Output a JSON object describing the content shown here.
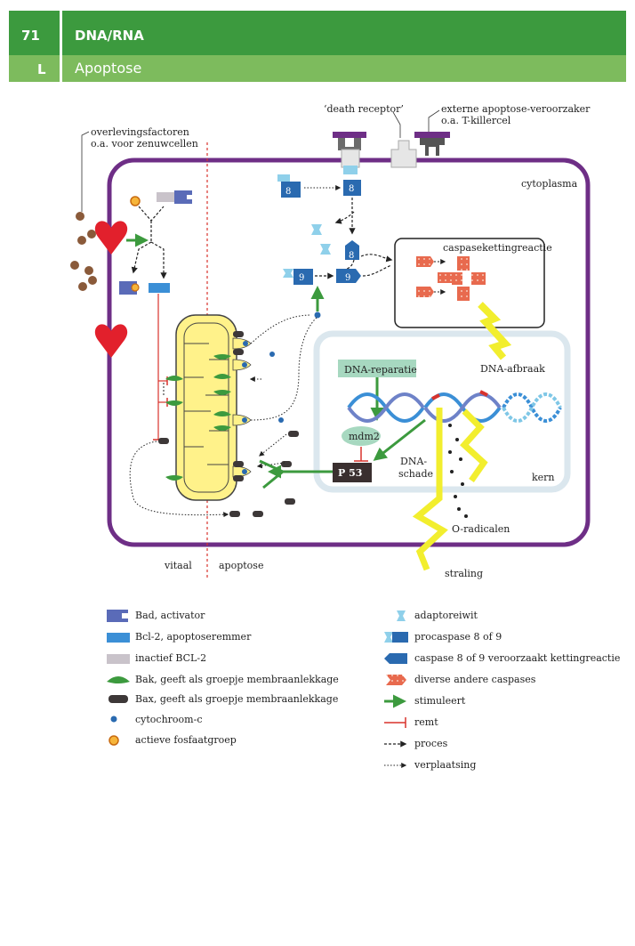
{
  "header": {
    "number": "71",
    "title": "DNA/RNA",
    "code": "L",
    "subtitle": "Apoptose"
  },
  "labels": {
    "death_receptor": "‘death receptor’",
    "external_1": "externe apoptose-veroorzaker",
    "external_2": "o.a. T-killercel",
    "survival_1": "overlevingsfactoren",
    "survival_2": "o.a. voor zenuwcellen",
    "cytoplasm": "cytoplasma",
    "cascade": "caspasekettingreactie",
    "dna_breakdown": "DNA-afbraak",
    "dna_repair": "DNA-reparatie",
    "mdm2": "mdm2",
    "p53": "P 53",
    "dna_damage_1": "DNA-",
    "dna_damage_2": "schade",
    "nucleus": "kern",
    "radicals": "O-radicalen",
    "radiation": "straling",
    "vital": "vitaal",
    "apoptosis": "apoptose",
    "casp8": "8",
    "casp9": "9"
  },
  "legend_left": [
    {
      "icon": "bad-icon",
      "text": "Bad, activator"
    },
    {
      "icon": "bcl2-icon",
      "text": "Bcl-2, apoptoseremmer"
    },
    {
      "icon": "inactive-bcl2-icon",
      "text": "inactief BCL-2"
    },
    {
      "icon": "bak-icon",
      "text": "Bak, geeft als groepje membraanlekkage"
    },
    {
      "icon": "bax-icon",
      "text": "Bax, geeft als groepje membraanlekkage"
    },
    {
      "icon": "cytochrome-c-icon",
      "text": "cytochroom-c"
    },
    {
      "icon": "phosphate-icon",
      "text": "actieve fosfaatgroep"
    }
  ],
  "legend_right": [
    {
      "icon": "adaptor-icon",
      "text": "adaptoreiwit"
    },
    {
      "icon": "procaspase-icon",
      "text": "procaspase 8 of 9"
    },
    {
      "icon": "caspase-icon",
      "text": "caspase 8 of 9 veroorzaakt kettingreactie"
    },
    {
      "icon": "other-caspases-icon",
      "text": "diverse andere caspases"
    },
    {
      "icon": "stimulates-icon",
      "text": "stimuleert"
    },
    {
      "icon": "inhibits-icon",
      "text": "remt"
    },
    {
      "icon": "process-icon",
      "text": "proces"
    },
    {
      "icon": "translocation-icon",
      "text": "verplaatsing"
    }
  ],
  "colors": {
    "header_dark": "#3c9a3e",
    "header_light": "#7dbb5d",
    "cell_membrane": "#6e2e86",
    "mitochondrion": "#fff28a",
    "bcl2": "#3b8fd6",
    "caspase": "#2a6ab0",
    "adaptor": "#8fd0ea",
    "stimulate": "#3c9a3e",
    "inhibit": "#d8322c",
    "heart": "#e2202c",
    "other_caspases": "#e86a4e"
  }
}
